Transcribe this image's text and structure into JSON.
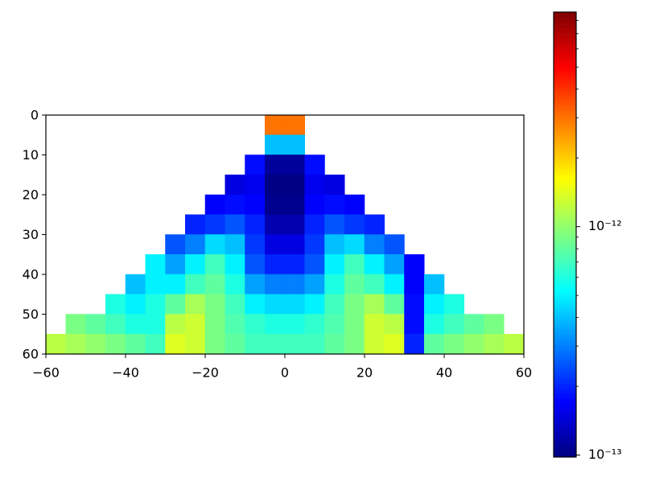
{
  "chart_data": {
    "type": "heatmap",
    "colormap": "jet",
    "color_scale": "log",
    "x_edges": [
      -60,
      -55,
      -50,
      -45,
      -40,
      -35,
      -30,
      -25,
      -20,
      -15,
      -10,
      -5,
      0,
      5,
      10,
      15,
      20,
      25,
      30,
      35,
      40,
      45,
      50,
      55,
      60
    ],
    "y_edges": [
      0,
      5,
      10,
      15,
      20,
      25,
      30,
      35,
      40,
      45,
      50,
      55,
      60
    ],
    "values": [
      [
        null,
        null,
        null,
        null,
        null,
        null,
        null,
        null,
        null,
        null,
        null,
        3e-12,
        3e-12,
        null,
        null,
        null,
        null,
        null,
        null,
        null,
        null,
        null,
        null,
        null
      ],
      [
        null,
        null,
        null,
        null,
        null,
        null,
        null,
        null,
        null,
        null,
        null,
        4e-13,
        4e-13,
        null,
        null,
        null,
        null,
        null,
        null,
        null,
        null,
        null,
        null,
        null
      ],
      [
        null,
        null,
        null,
        null,
        null,
        null,
        null,
        null,
        null,
        null,
        1.8e-13,
        1.1e-13,
        1.1e-13,
        1.8e-13,
        null,
        null,
        null,
        null,
        null,
        null,
        null,
        null,
        null,
        null
      ],
      [
        null,
        null,
        null,
        null,
        null,
        null,
        null,
        null,
        null,
        1.5e-13,
        1.6e-13,
        1e-13,
        1e-13,
        1.6e-13,
        1.5e-13,
        null,
        null,
        null,
        null,
        null,
        null,
        null,
        null,
        null
      ],
      [
        null,
        null,
        null,
        null,
        null,
        null,
        null,
        null,
        1.7e-13,
        1.8e-13,
        1.7e-13,
        1.05e-13,
        1.05e-13,
        1.7e-13,
        1.8e-13,
        1.7e-13,
        null,
        null,
        null,
        null,
        null,
        null,
        null,
        null
      ],
      [
        null,
        null,
        null,
        null,
        null,
        null,
        null,
        2e-13,
        2.2e-13,
        2.5e-13,
        2e-13,
        1.2e-13,
        1.2e-13,
        2e-13,
        2.5e-13,
        2.2e-13,
        2e-13,
        null,
        null,
        null,
        null,
        null,
        null,
        null
      ],
      [
        null,
        null,
        null,
        null,
        null,
        null,
        2.5e-13,
        3e-13,
        4.5e-13,
        4e-13,
        2.2e-13,
        1.5e-13,
        1.5e-13,
        2.2e-13,
        4e-13,
        4.5e-13,
        3e-13,
        2.5e-13,
        null,
        null,
        null,
        null,
        null,
        null
      ],
      [
        null,
        null,
        null,
        null,
        null,
        5e-13,
        3.5e-13,
        5e-13,
        7e-13,
        5e-13,
        2.5e-13,
        2e-13,
        2e-13,
        2.5e-13,
        5e-13,
        7e-13,
        5e-13,
        3.5e-13,
        1.7e-13,
        null,
        null,
        null,
        null,
        null
      ],
      [
        null,
        null,
        null,
        null,
        4e-13,
        5e-13,
        5e-13,
        7e-13,
        8e-13,
        6e-13,
        3.5e-13,
        3e-13,
        3e-13,
        3.5e-13,
        6e-13,
        8e-13,
        7e-13,
        5e-13,
        1.7e-13,
        4e-13,
        null,
        null,
        null,
        null
      ],
      [
        null,
        null,
        null,
        6e-13,
        5e-13,
        6e-13,
        8e-13,
        1.1e-12,
        9e-13,
        7e-13,
        5e-13,
        4.5e-13,
        4.5e-13,
        5e-13,
        7e-13,
        9e-13,
        1.1e-12,
        8e-13,
        1.8e-13,
        5e-13,
        6e-13,
        null,
        null,
        null
      ],
      [
        null,
        9e-13,
        8e-13,
        7e-13,
        6e-13,
        6e-13,
        1.2e-12,
        1.3e-12,
        9e-13,
        7.5e-13,
        6.5e-13,
        6e-13,
        6e-13,
        6.5e-13,
        7.5e-13,
        9e-13,
        1.3e-12,
        1.2e-12,
        1.8e-13,
        6e-13,
        7e-13,
        8e-13,
        9e-13,
        null
      ],
      [
        1.2e-12,
        1.1e-12,
        1e-12,
        9e-13,
        8e-13,
        7e-13,
        1.4e-12,
        1.3e-12,
        9e-13,
        8e-13,
        7e-13,
        7e-13,
        7e-13,
        7e-13,
        8e-13,
        9e-13,
        1.3e-12,
        1.4e-12,
        2e-13,
        8e-13,
        9e-13,
        1e-12,
        1.1e-12,
        1.2e-12
      ]
    ],
    "xlim": [
      -60,
      60
    ],
    "ylim": [
      60,
      0
    ],
    "xticks": [
      {
        "value": -60,
        "label": "−60"
      },
      {
        "value": -40,
        "label": "−40"
      },
      {
        "value": -20,
        "label": "−20"
      },
      0,
      20,
      40,
      60
    ],
    "yticks": [
      0,
      10,
      20,
      30,
      40,
      50,
      60
    ],
    "clim": [
      9.8e-14,
      8.7e-12
    ],
    "cticks": [
      {
        "value": 1e-13,
        "label": "10⁻¹³"
      },
      {
        "value": 1e-12,
        "label": "10⁻¹²"
      }
    ],
    "cticks_minor": [
      2e-13,
      3e-13,
      4e-13,
      5e-13,
      6e-13,
      7e-13,
      8e-13,
      9e-13,
      2e-12,
      3e-12,
      4e-12,
      5e-12,
      6e-12,
      7e-12,
      8e-12
    ]
  }
}
